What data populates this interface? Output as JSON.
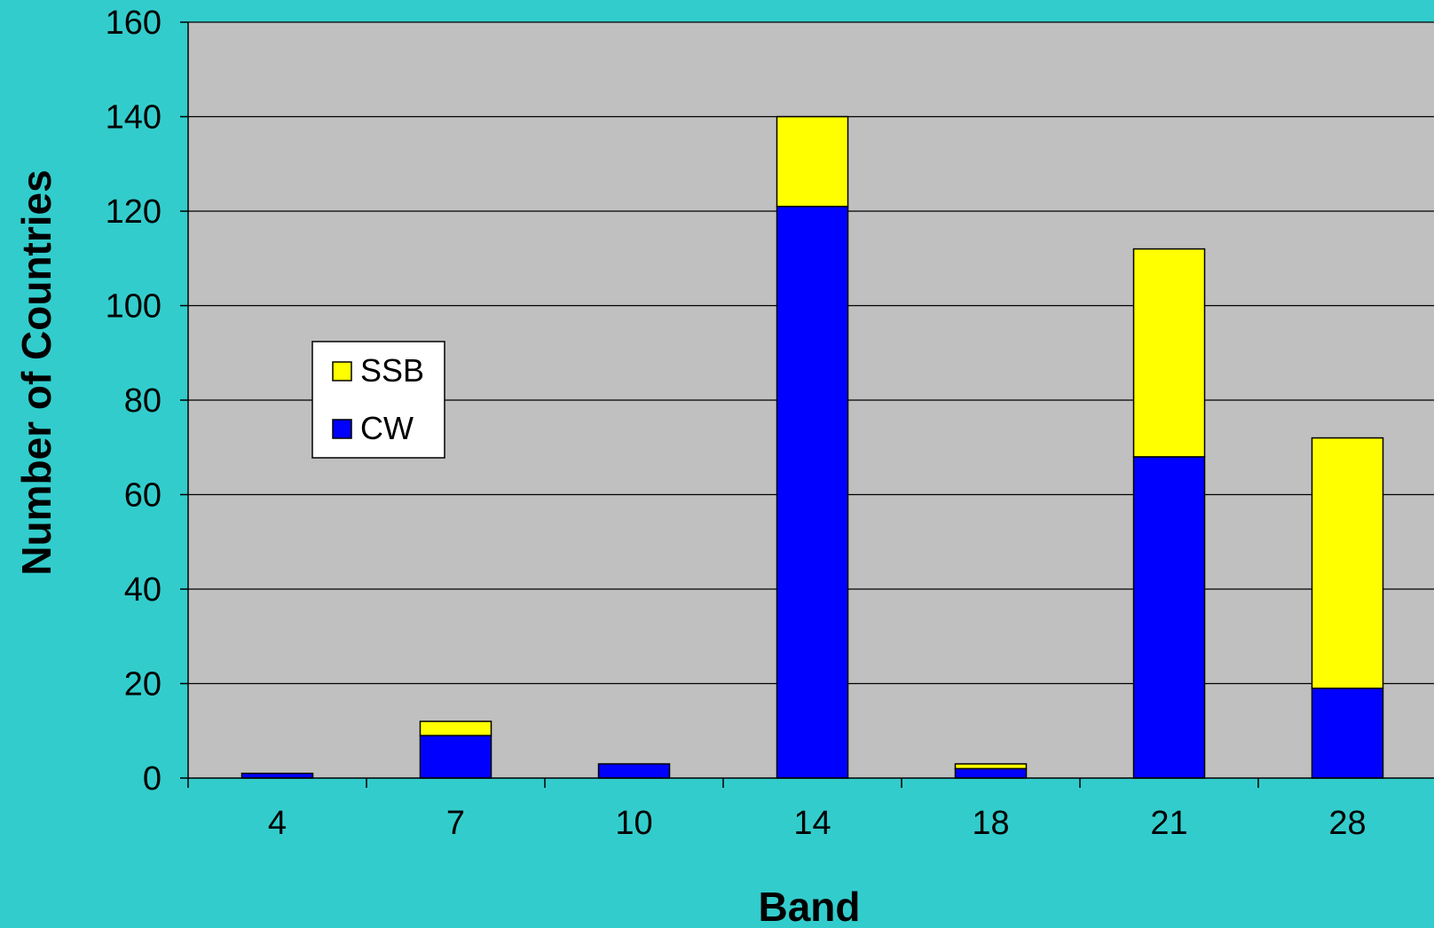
{
  "chart_data": {
    "type": "bar",
    "stacked": true,
    "categories": [
      "4",
      "7",
      "10",
      "14",
      "18",
      "21",
      "28"
    ],
    "series": [
      {
        "name": "CW",
        "color": "#0000FF",
        "values": [
          1,
          9,
          3,
          121,
          2,
          68,
          19
        ]
      },
      {
        "name": "SSB",
        "color": "#FFFF00",
        "values": [
          0,
          3,
          0,
          19,
          1,
          44,
          53
        ]
      }
    ],
    "title": "",
    "xlabel": "Band",
    "ylabel": "Number of Countries",
    "ylim": [
      0,
      160
    ],
    "yticks": [
      "0",
      "20",
      "40",
      "60",
      "80",
      "100",
      "120",
      "140",
      "160"
    ],
    "grid": true,
    "legend_position": "upper-left",
    "legend_order": [
      "SSB",
      "CW"
    ],
    "plot_background": "#C0C0C0",
    "page_background": "#33CCCC"
  }
}
